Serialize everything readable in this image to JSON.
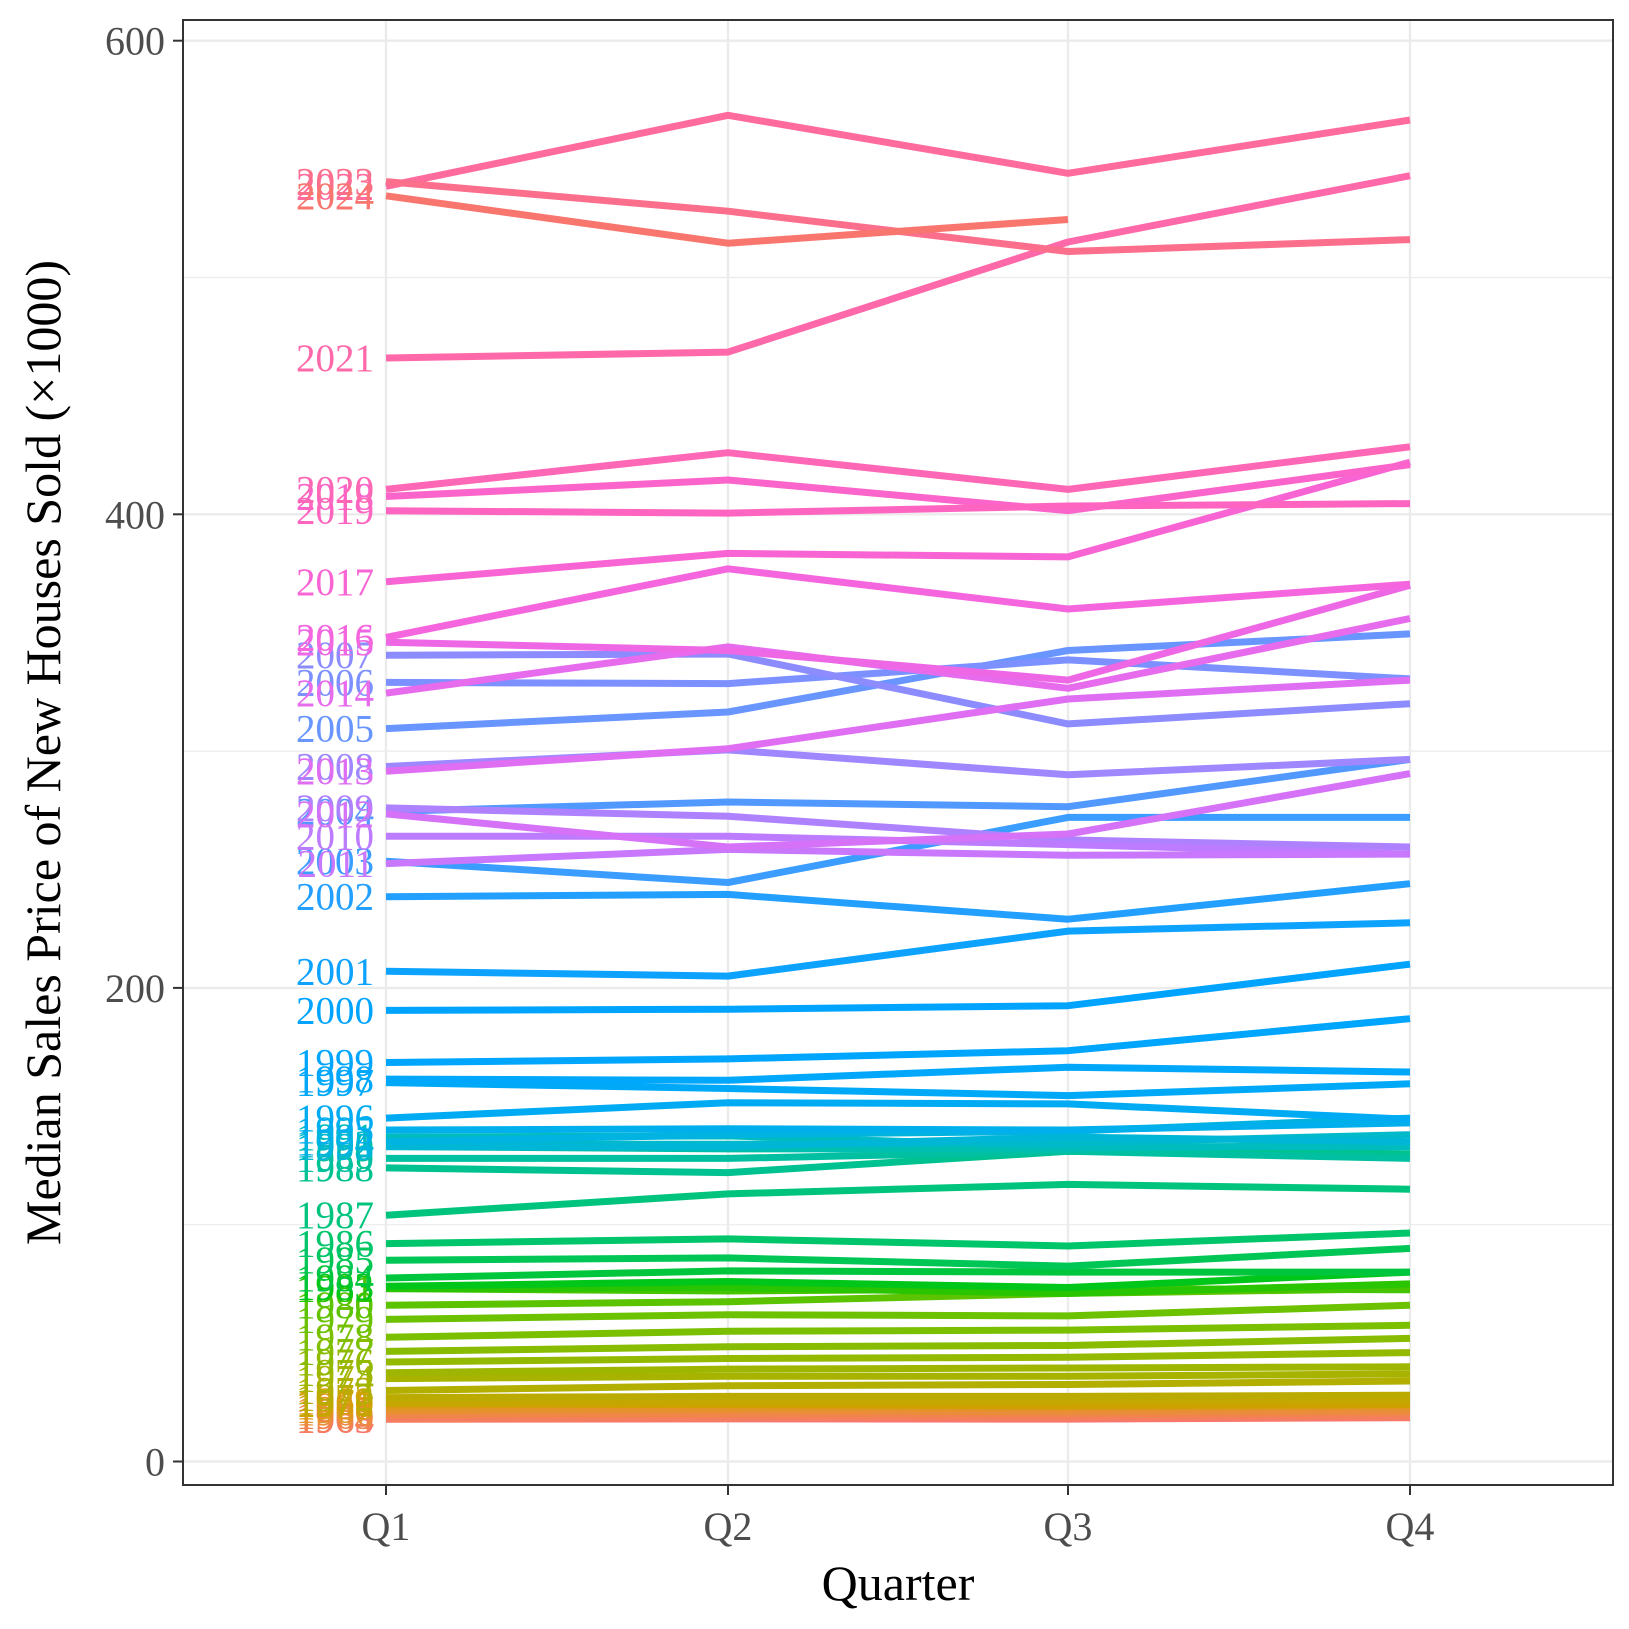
{
  "chart_data": {
    "type": "line",
    "xlabel": "Quarter",
    "ylabel": "Median Sales Price of New Houses Sold (×1000)",
    "categories": [
      "Q1",
      "Q2",
      "Q3",
      "Q4"
    ],
    "ylim": [
      -10,
      610
    ],
    "yticks": [
      0,
      200,
      400,
      600
    ],
    "grid": true,
    "legend": "none (series labeled at left of lines)",
    "series": [
      {
        "name": "1963",
        "values": [
          17.8,
          18.0,
          17.9,
          18.5
        ],
        "color": "#F8766D"
      },
      {
        "name": "1964",
        "values": [
          18.0,
          18.5,
          18.7,
          19.0
        ],
        "color": "#F57E5E"
      },
      {
        "name": "1965",
        "values": [
          19.5,
          20.0,
          20.0,
          20.5
        ],
        "color": "#F1844D"
      },
      {
        "name": "1966",
        "values": [
          21.0,
          21.5,
          21.0,
          21.5
        ],
        "color": "#EB8B3C"
      },
      {
        "name": "1967",
        "values": [
          22.0,
          22.5,
          22.5,
          23.0
        ],
        "color": "#E4922A"
      },
      {
        "name": "1968",
        "values": [
          23.5,
          24.5,
          24.5,
          25.0
        ],
        "color": "#DC9818"
      },
      {
        "name": "1969",
        "values": [
          25.5,
          25.5,
          25.0,
          25.0
        ],
        "color": "#D59D0B"
      },
      {
        "name": "1970",
        "values": [
          24.5,
          24.0,
          23.5,
          24.0
        ],
        "color": "#CDA200"
      },
      {
        "name": "1971",
        "values": [
          25.0,
          25.5,
          25.5,
          26.0
        ],
        "color": "#C4A700"
      },
      {
        "name": "1972",
        "values": [
          27.0,
          27.5,
          27.5,
          28.0
        ],
        "color": "#BBAB00"
      },
      {
        "name": "1973",
        "values": [
          30.0,
          32.0,
          32.5,
          34.0
        ],
        "color": "#B2AF00"
      },
      {
        "name": "1974",
        "values": [
          35.0,
          36.0,
          36.0,
          37.0
        ],
        "color": "#A8B300"
      },
      {
        "name": "1975",
        "values": [
          37.5,
          39.0,
          39.5,
          40.0
        ],
        "color": "#9EB600"
      },
      {
        "name": "1976",
        "values": [
          42.0,
          43.5,
          44.0,
          46.0
        ],
        "color": "#93B900"
      },
      {
        "name": "1977",
        "values": [
          46.5,
          48.5,
          49.0,
          52.0
        ],
        "color": "#87BC00"
      },
      {
        "name": "1978",
        "values": [
          52.5,
          55.0,
          55.5,
          57.5
        ],
        "color": "#7ABF00"
      },
      {
        "name": "1979",
        "values": [
          60.0,
          62.0,
          61.5,
          66.0
        ],
        "color": "#6CC100"
      },
      {
        "name": "1980",
        "values": [
          66.0,
          67.5,
          71.0,
          73.0
        ],
        "color": "#5BC300"
      },
      {
        "name": "1981",
        "values": [
          73.0,
          72.0,
          73.0,
          72.5
        ],
        "color": "#46C400"
      },
      {
        "name": "1982",
        "values": [
          73.0,
          73.5,
          71.0,
          75.0
        ],
        "color": "#28C500"
      },
      {
        "name": "1983",
        "values": [
          74.0,
          76.0,
          73.5,
          80.0
        ],
        "color": "#00C61A"
      },
      {
        "name": "1984",
        "values": [
          77.5,
          80.5,
          80.0,
          80.0
        ],
        "color": "#00C63D"
      },
      {
        "name": "1985",
        "values": [
          85.0,
          86.0,
          82.5,
          90.0
        ],
        "color": "#00C655"
      },
      {
        "name": "1986",
        "values": [
          92.0,
          94.0,
          91.0,
          96.5
        ],
        "color": "#00C56A"
      },
      {
        "name": "1987",
        "values": [
          104.0,
          113.0,
          117.0,
          115.0
        ],
        "color": "#00C47E"
      },
      {
        "name": "1988",
        "values": [
          124.0,
          122.0,
          131.0,
          130.0
        ],
        "color": "#00C290"
      },
      {
        "name": "1989",
        "values": [
          128.0,
          128.0,
          131.0,
          128.0
        ],
        "color": "#00C0A1"
      },
      {
        "name": "1990",
        "values": [
          133.0,
          132.0,
          132.0,
          134.0
        ],
        "color": "#00BEB0"
      },
      {
        "name": "1991",
        "values": [
          137.0,
          137.5,
          133.0,
          133.0
        ],
        "color": "#00BCBE"
      },
      {
        "name": "1992",
        "values": [
          134.0,
          134.0,
          134.5,
          138.0
        ],
        "color": "#00B9CB"
      },
      {
        "name": "1993",
        "values": [
          133.0,
          133.0,
          137.0,
          135.0
        ],
        "color": "#00B6D7"
      },
      {
        "name": "1994",
        "values": [
          135.0,
          138.0,
          139.5,
          145.0
        ],
        "color": "#00B3E1"
      },
      {
        "name": "1995",
        "values": [
          140.0,
          140.5,
          140.0,
          143.0
        ],
        "color": "#00AFEB"
      },
      {
        "name": "1996",
        "values": [
          145.0,
          151.5,
          151.0,
          144.5
        ],
        "color": "#00ABF3"
      },
      {
        "name": "1997",
        "values": [
          160.0,
          157.5,
          154.5,
          159.5
        ],
        "color": "#00A9F8"
      },
      {
        "name": "1998",
        "values": [
          161.5,
          161.0,
          166.5,
          164.5
        ],
        "color": "#00A7FB"
      },
      {
        "name": "1999",
        "values": [
          168.5,
          170.0,
          173.5,
          187.0
        ],
        "color": "#00A5FE"
      },
      {
        "name": "2000",
        "values": [
          190.5,
          191.0,
          192.5,
          210.0
        ],
        "color": "#00A4FF"
      },
      {
        "name": "2001",
        "values": [
          207.0,
          205.0,
          224.0,
          227.5
        ],
        "color": "#0EA2FF"
      },
      {
        "name": "2002",
        "values": [
          238.5,
          239.5,
          229.0,
          244.0
        ],
        "color": "#23A0FF"
      },
      {
        "name": "2003",
        "values": [
          253.5,
          244.5,
          272.0,
          272.0
        ],
        "color": "#3A9DFF"
      },
      {
        "name": "2004",
        "values": [
          274.5,
          278.5,
          276.5,
          296.5
        ],
        "color": "#5299FF"
      },
      {
        "name": "2005",
        "values": [
          309.5,
          316.5,
          342.5,
          349.5
        ],
        "color": "#6995FF"
      },
      {
        "name": "2006",
        "values": [
          329.0,
          328.5,
          338.5,
          330.5
        ],
        "color": "#7C91FF"
      },
      {
        "name": "2007",
        "values": [
          340.5,
          341.0,
          311.5,
          320.0
        ],
        "color": "#8D8CFF"
      },
      {
        "name": "2008",
        "values": [
          293.5,
          300.5,
          290.0,
          296.5
        ],
        "color": "#9E87FF"
      },
      {
        "name": "2009",
        "values": [
          276.0,
          272.5,
          262.5,
          259.5
        ],
        "color": "#AE82FF"
      },
      {
        "name": "2010",
        "values": [
          264.0,
          264.0,
          260.5,
          256.5
        ],
        "color": "#BD7CFF"
      },
      {
        "name": "2011",
        "values": [
          252.5,
          258.5,
          256.0,
          256.5
        ],
        "color": "#C977FD"
      },
      {
        "name": "2012",
        "values": [
          273.5,
          259.5,
          265.0,
          290.5
        ],
        "color": "#D572F8"
      },
      {
        "name": "2013",
        "values": [
          291.5,
          301.0,
          322.0,
          330.0
        ],
        "color": "#DF6EF3"
      },
      {
        "name": "2014",
        "values": [
          324.5,
          344.0,
          326.5,
          356.0
        ],
        "color": "#E76BED"
      },
      {
        "name": "2015",
        "values": [
          346.0,
          342.5,
          330.0,
          370.0
        ],
        "color": "#EE68E6"
      },
      {
        "name": "2016",
        "values": [
          348.0,
          377.0,
          360.0,
          370.5
        ],
        "color": "#F465DE"
      },
      {
        "name": "2017",
        "values": [
          371.5,
          383.5,
          382.0,
          422.0
        ],
        "color": "#F864D4"
      },
      {
        "name": "2018",
        "values": [
          407.5,
          414.5,
          401.5,
          421.0
        ],
        "color": "#FB64CA"
      },
      {
        "name": "2019",
        "values": [
          401.5,
          400.5,
          403.5,
          404.5
        ],
        "color": "#FD65C0"
      },
      {
        "name": "2020",
        "values": [
          410.5,
          426.0,
          410.5,
          428.5
        ],
        "color": "#FE67B5"
      },
      {
        "name": "2021",
        "values": [
          466.0,
          468.5,
          515.0,
          543.0
        ],
        "color": "#FF69AA"
      },
      {
        "name": "2022",
        "values": [
          538.5,
          568.5,
          544.0,
          566.5
        ],
        "color": "#FF6B9D"
      },
      {
        "name": "2023",
        "values": [
          540.5,
          528.0,
          511.0,
          516.0
        ],
        "color": "#FC6F8C"
      },
      {
        "name": "2024",
        "values": [
          534.5,
          514.5,
          524.5,
          null
        ],
        "color": "#F8766D"
      }
    ]
  }
}
